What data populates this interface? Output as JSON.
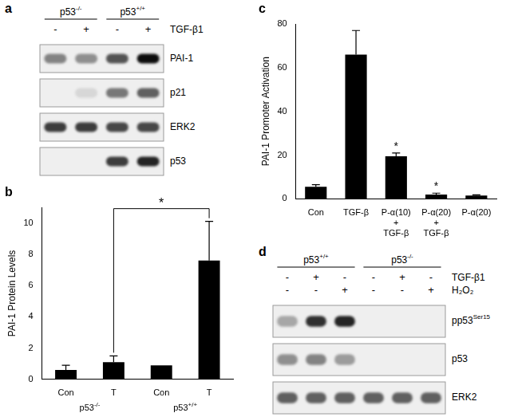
{
  "chart_data": [
    {
      "type": "bar",
      "title": "b",
      "y_label": "PAI-1 Protein Levels",
      "categories": [
        "Con",
        "T",
        "Con",
        "T"
      ],
      "values": [
        0.6,
        1.1,
        0.9,
        7.6
      ],
      "errors": [
        0.3,
        0.4,
        null,
        2.5
      ],
      "groups": [
        {
          "text": "p53",
          "sup": "-/-",
          "from": 0,
          "to": 1
        },
        {
          "text": "p53",
          "sup": "+/+",
          "from": 2,
          "to": 3
        }
      ],
      "significance": [
        {
          "between": [
            1,
            3
          ],
          "label": "*"
        }
      ],
      "color": "#000000",
      "ylim": [
        0,
        11
      ],
      "yticks": [
        0,
        2,
        4,
        6,
        8,
        10
      ],
      "grid": false
    },
    {
      "type": "bar",
      "title": "c",
      "y_label": "PAI-1 Promoter Activation",
      "categories": [
        [
          "Con"
        ],
        [
          "TGF-β"
        ],
        [
          "P-α(10)",
          "+",
          "TGF-β"
        ],
        [
          "P-α(20)",
          "+",
          "TGF-β"
        ],
        [
          "P-α(20)"
        ]
      ],
      "values": [
        5.5,
        66,
        19.5,
        2,
        1.5
      ],
      "errors": [
        1,
        11,
        1.5,
        0.6,
        0.3
      ],
      "annotations": [
        {
          "index": 2,
          "text": "*"
        },
        {
          "index": 3,
          "text": "*"
        }
      ],
      "color": "#000000",
      "ylim": [
        0,
        80
      ],
      "yticks": [
        0,
        20,
        40,
        60,
        80
      ],
      "grid": false
    }
  ],
  "blots": [
    {
      "title": "a",
      "groups": [
        {
          "text": "p53",
          "sup": "-/-",
          "lanes": [
            0,
            1
          ]
        },
        {
          "text": "p53",
          "sup": "+/+",
          "lanes": [
            2,
            3
          ]
        }
      ],
      "treatments": [
        {
          "label": "TGF-β1",
          "signs": [
            "-",
            "+",
            "-",
            "+"
          ]
        }
      ],
      "rows": [
        {
          "label": "PAI-1",
          "bands": [
            0.45,
            0.4,
            0.65,
            0.95
          ]
        },
        {
          "label": "p21",
          "bands": [
            0,
            0.1,
            0.5,
            0.6
          ]
        },
        {
          "label": "ERK2",
          "bands": [
            0.75,
            0.75,
            0.7,
            0.7
          ]
        },
        {
          "label": "p53",
          "bands": [
            0,
            0,
            0.75,
            0.85
          ]
        }
      ]
    },
    {
      "title": "d",
      "groups": [
        {
          "text": "p53",
          "sup": "+/+",
          "lanes": [
            0,
            2
          ]
        },
        {
          "text": "p53",
          "sup": "-/-",
          "lanes": [
            3,
            5
          ]
        }
      ],
      "treatments": [
        {
          "label": "TGF-β1",
          "signs": [
            "-",
            "+",
            "-",
            "-",
            "+",
            "-"
          ]
        },
        {
          "label": "H₂O₂",
          "signs": [
            "-",
            "-",
            "+",
            "-",
            "-",
            "+"
          ]
        }
      ],
      "rows": [
        {
          "label": "pp53",
          "sup": "Ser15",
          "bands": [
            0.3,
            0.8,
            0.85,
            0,
            0,
            0
          ]
        },
        {
          "label": "p53",
          "bands": [
            0.4,
            0.45,
            0.35,
            0,
            0,
            0
          ]
        },
        {
          "label": "ERK2",
          "bands": [
            0.6,
            0.6,
            0.6,
            0.6,
            0.6,
            0.6
          ]
        }
      ]
    }
  ]
}
